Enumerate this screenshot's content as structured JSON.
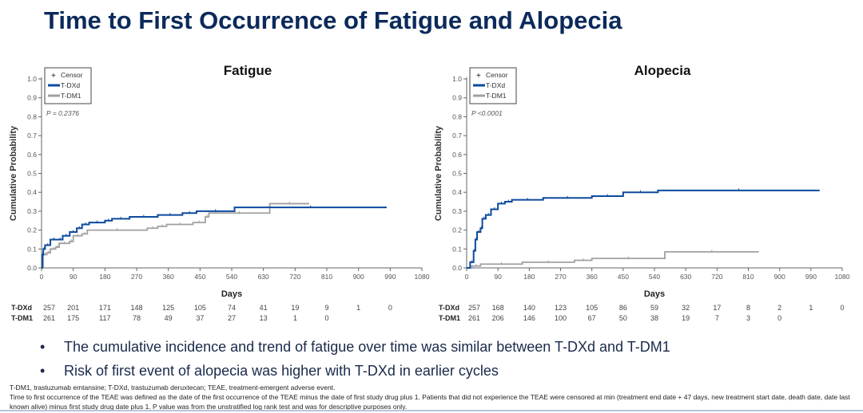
{
  "title": "Time to First Occurrence of Fatigue and Alopecia",
  "bullets": [
    "The cumulative incidence and trend of fatigue over time was similar between T-DXd and T-DM1",
    "Risk of first event of alopecia was higher with T-DXd in earlier cycles"
  ],
  "footnote1": "T-DM1, trastuzumab emtansine; T-DXd, trastuzumab deruxtecan; TEAE, treatment-emergent adverse event.",
  "footnote2": "Time to first occurrence of the TEAE was defined as the date of the first occurrence of the TEAE minus the date of first study drug plus 1. Patients that did not experience the TEAE were censored at min (treatment end date + 47 days, new treatment start date, death date, date last known alive) minus first study drug date plus 1. P value was from the unstratified log rank test and was for descriptive purposes only.",
  "colors": {
    "T-DXd": "#0d4a9e",
    "T-DM1": "#a0a0a0",
    "title": "#0b2a5b"
  },
  "chart_data": [
    {
      "type": "line",
      "title": "Fatigue",
      "xlabel": "Days",
      "ylabel": "Cumulative Probability",
      "xlim": [
        0,
        1080
      ],
      "ylim": [
        0,
        1
      ],
      "xticks": [
        0,
        90,
        180,
        270,
        360,
        450,
        540,
        630,
        720,
        810,
        900,
        990,
        1080
      ],
      "yticks": [
        0.0,
        0.1,
        0.2,
        0.3,
        0.4,
        0.5,
        0.6,
        0.7,
        0.8,
        0.9,
        1.0
      ],
      "legend": [
        "Censor",
        "T-DXd",
        "T-DM1"
      ],
      "legend_position": "top-left",
      "pvalue": "P = 0.2376",
      "series": [
        {
          "name": "T-DXd",
          "x": [
            0,
            2,
            5,
            10,
            25,
            45,
            60,
            80,
            100,
            115,
            135,
            180,
            200,
            250,
            330,
            400,
            440,
            548,
            980
          ],
          "y": [
            0,
            0.07,
            0.1,
            0.12,
            0.15,
            0.15,
            0.17,
            0.19,
            0.21,
            0.23,
            0.24,
            0.25,
            0.26,
            0.27,
            0.28,
            0.29,
            0.3,
            0.32,
            0.32
          ]
        },
        {
          "name": "T-DM1",
          "x": [
            0,
            5,
            15,
            25,
            40,
            50,
            80,
            90,
            115,
            130,
            300,
            330,
            355,
            430,
            465,
            475,
            648,
            760
          ],
          "y": [
            0,
            0.07,
            0.08,
            0.1,
            0.11,
            0.13,
            0.14,
            0.17,
            0.18,
            0.2,
            0.21,
            0.22,
            0.23,
            0.24,
            0.27,
            0.29,
            0.34,
            0.34
          ]
        }
      ],
      "at_risk": {
        "T-DXd": [
          "257",
          "201",
          "171",
          "148",
          "125",
          "105",
          "74",
          "41",
          "19",
          "9",
          "1",
          "0"
        ],
        "T-DM1": [
          "261",
          "175",
          "117",
          "78",
          "49",
          "37",
          "27",
          "13",
          "1",
          "0"
        ]
      }
    },
    {
      "type": "line",
      "title": "Alopecia",
      "xlabel": "Days",
      "ylabel": "Cumulative Probability",
      "xlim": [
        0,
        1080
      ],
      "ylim": [
        0,
        1
      ],
      "xticks": [
        0,
        90,
        180,
        270,
        360,
        450,
        540,
        630,
        720,
        810,
        900,
        990,
        1080
      ],
      "yticks": [
        0.0,
        0.1,
        0.2,
        0.3,
        0.4,
        0.5,
        0.6,
        0.7,
        0.8,
        0.9,
        1.0
      ],
      "legend": [
        "Censor",
        "T-DXd",
        "T-DM1"
      ],
      "legend_position": "top-left",
      "pvalue": "P <0.0001",
      "series": [
        {
          "name": "T-DXd",
          "x": [
            0,
            10,
            20,
            25,
            30,
            40,
            45,
            55,
            70,
            90,
            110,
            130,
            220,
            360,
            450,
            550,
            1015
          ],
          "y": [
            0,
            0.03,
            0.09,
            0.15,
            0.19,
            0.21,
            0.26,
            0.28,
            0.31,
            0.34,
            0.35,
            0.36,
            0.37,
            0.38,
            0.4,
            0.41,
            0.41
          ]
        },
        {
          "name": "T-DM1",
          "x": [
            0,
            15,
            40,
            160,
            310,
            360,
            570,
            840
          ],
          "y": [
            0,
            0.01,
            0.02,
            0.03,
            0.04,
            0.05,
            0.085,
            0.085
          ]
        }
      ],
      "at_risk": {
        "T-DXd": [
          "257",
          "168",
          "140",
          "123",
          "105",
          "86",
          "59",
          "32",
          "17",
          "8",
          "2",
          "1",
          "0"
        ],
        "T-DM1": [
          "261",
          "206",
          "146",
          "100",
          "67",
          "50",
          "38",
          "19",
          "7",
          "3",
          "0"
        ]
      }
    }
  ]
}
